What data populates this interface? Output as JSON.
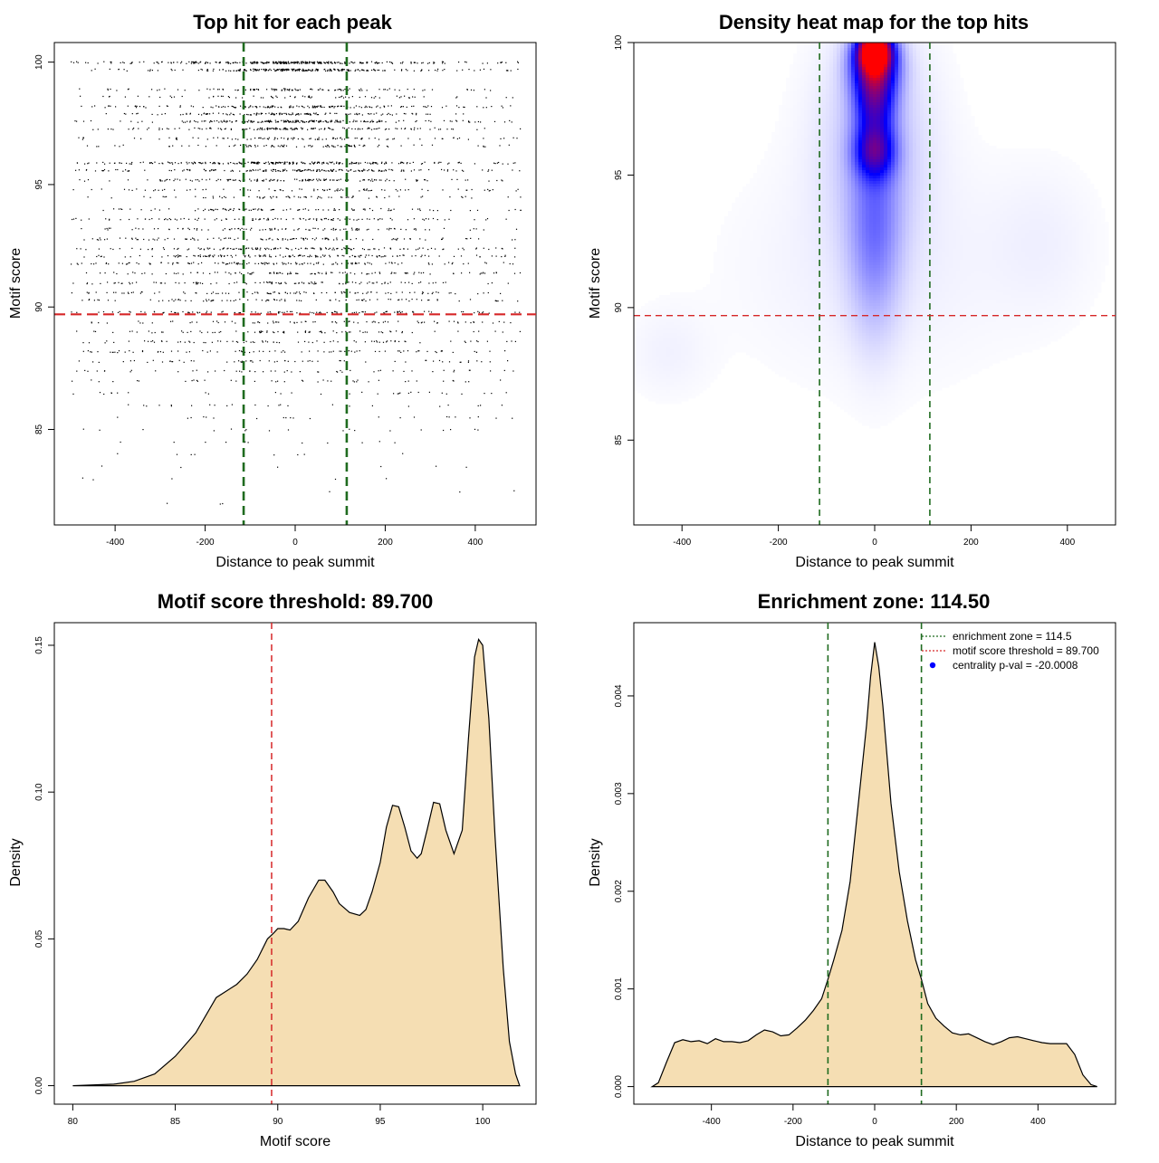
{
  "colors": {
    "green": "#1f6b1f",
    "red": "#d62728",
    "blue": "#0000ff",
    "fill": "#f5deb3",
    "black": "#000000"
  },
  "chart_data": [
    {
      "id": "p1",
      "type": "scatter",
      "title": "Top hit for each peak",
      "xlabel": "Distance to peak summit",
      "ylabel": "Motif score",
      "xlim": [
        -535,
        535
      ],
      "ylim": [
        81.1,
        100.8
      ],
      "xticks": [
        -400,
        -200,
        0,
        200,
        400
      ],
      "yticks": [
        85,
        90,
        95,
        100
      ],
      "vlines": [
        -114.5,
        114.5
      ],
      "hline": 89.7,
      "x_range": [
        -500,
        500
      ],
      "score_levels": [
        {
          "score": 100.0,
          "count": 320,
          "sd": 110
        },
        {
          "score": 99.7,
          "count": 250,
          "sd": 100
        },
        {
          "score": 98.9,
          "count": 110,
          "sd": 140
        },
        {
          "score": 98.6,
          "count": 70,
          "sd": 160
        },
        {
          "score": 98.2,
          "count": 160,
          "sd": 130
        },
        {
          "score": 97.9,
          "count": 140,
          "sd": 130
        },
        {
          "score": 97.6,
          "count": 210,
          "sd": 120
        },
        {
          "score": 97.3,
          "count": 150,
          "sd": 140
        },
        {
          "score": 96.9,
          "count": 100,
          "sd": 170
        },
        {
          "score": 96.6,
          "count": 90,
          "sd": 180
        },
        {
          "score": 95.9,
          "count": 260,
          "sd": 120
        },
        {
          "score": 95.6,
          "count": 180,
          "sd": 130
        },
        {
          "score": 95.2,
          "count": 140,
          "sd": 160
        },
        {
          "score": 94.8,
          "count": 80,
          "sd": 200
        },
        {
          "score": 94.5,
          "count": 70,
          "sd": 200
        },
        {
          "score": 94.0,
          "count": 100,
          "sd": 180
        },
        {
          "score": 93.6,
          "count": 110,
          "sd": 180
        },
        {
          "score": 93.2,
          "count": 100,
          "sd": 190
        },
        {
          "score": 92.8,
          "count": 110,
          "sd": 200
        },
        {
          "score": 92.4,
          "count": 140,
          "sd": 200
        },
        {
          "score": 92.1,
          "count": 150,
          "sd": 200
        },
        {
          "score": 91.8,
          "count": 130,
          "sd": 210
        },
        {
          "score": 91.4,
          "count": 110,
          "sd": 220
        },
        {
          "score": 91.0,
          "count": 110,
          "sd": 220
        },
        {
          "score": 90.6,
          "count": 100,
          "sd": 230
        },
        {
          "score": 90.3,
          "count": 90,
          "sd": 230
        },
        {
          "score": 89.8,
          "count": 110,
          "sd": 230
        },
        {
          "score": 89.4,
          "count": 80,
          "sd": 260
        },
        {
          "score": 89.0,
          "count": 80,
          "sd": 270
        },
        {
          "score": 88.6,
          "count": 80,
          "sd": 280
        },
        {
          "score": 88.2,
          "count": 80,
          "sd": 280
        },
        {
          "score": 87.8,
          "count": 60,
          "sd": 300
        },
        {
          "score": 87.4,
          "count": 50,
          "sd": 300
        },
        {
          "score": 87.0,
          "count": 40,
          "sd": 320
        },
        {
          "score": 86.5,
          "count": 30,
          "sd": 330
        },
        {
          "score": 86.0,
          "count": 25,
          "sd": 340
        },
        {
          "score": 85.5,
          "count": 22,
          "sd": 340
        },
        {
          "score": 85.0,
          "count": 18,
          "sd": 350
        },
        {
          "score": 84.5,
          "count": 12,
          "sd": 350
        },
        {
          "score": 84.0,
          "count": 8,
          "sd": 350
        },
        {
          "score": 83.5,
          "count": 6,
          "sd": 350
        },
        {
          "score": 83.0,
          "count": 5,
          "sd": 350
        },
        {
          "score": 82.5,
          "count": 3,
          "sd": 350
        },
        {
          "score": 82.0,
          "count": 3,
          "sd": 350
        }
      ]
    },
    {
      "id": "p2",
      "type": "heatmap",
      "title": "Density heat map for the top hits",
      "xlabel": "Distance to peak summit",
      "ylabel": "Motif score",
      "xlim": [
        -500,
        500
      ],
      "ylim": [
        81.8,
        100
      ],
      "xticks": [
        -400,
        -200,
        0,
        200,
        400
      ],
      "yticks": [
        85,
        90,
        95,
        100
      ],
      "vlines": [
        -114.5,
        114.5
      ],
      "hline": 89.7,
      "color_scale": [
        "white",
        "blue",
        "red"
      ],
      "hotspots": [
        {
          "x": 0,
          "y": 99.7,
          "sx": 22,
          "sy": 0.5,
          "w": 2.3
        },
        {
          "x": 0,
          "y": 99.2,
          "sx": 32,
          "sy": 0.8,
          "w": 1.35
        },
        {
          "x": 0,
          "y": 97.8,
          "sx": 28,
          "sy": 0.9,
          "w": 0.95
        },
        {
          "x": 0,
          "y": 95.9,
          "sx": 28,
          "sy": 0.7,
          "w": 1.0
        },
        {
          "x": 0,
          "y": 93.0,
          "sx": 38,
          "sy": 2.6,
          "w": 0.45
        },
        {
          "x": 0,
          "y": 96.5,
          "sx": 80,
          "sy": 2.8,
          "w": 0.22
        },
        {
          "x": 0,
          "y": 91.5,
          "sx": 200,
          "sy": 3.0,
          "w": 0.06
        },
        {
          "x": -430,
          "y": 88.3,
          "sx": 60,
          "sy": 1.2,
          "w": 0.05
        },
        {
          "x": 350,
          "y": 92.5,
          "sx": 80,
          "sy": 2.0,
          "w": 0.05
        }
      ]
    },
    {
      "id": "p3",
      "type": "area",
      "title": "Motif score threshold: 89.700",
      "xlabel": "Motif score",
      "ylabel": "Density",
      "xlim": [
        79.1,
        102.6
      ],
      "ylim": [
        -0.0063,
        0.1577
      ],
      "xticks": [
        80,
        85,
        90,
        95,
        100
      ],
      "yticks": [
        0.0,
        0.05,
        0.1,
        0.15
      ],
      "ytick_labels": [
        "0.00",
        "0.05",
        "0.10",
        "0.15"
      ],
      "vline": 89.7,
      "x": [
        80.0,
        82.0,
        83.0,
        84.0,
        85.0,
        86.0,
        87.0,
        88.0,
        88.5,
        89.0,
        89.5,
        89.8,
        90.0,
        90.3,
        90.6,
        91.0,
        91.5,
        92.0,
        92.3,
        92.7,
        93.0,
        93.5,
        94.0,
        94.3,
        94.6,
        95.0,
        95.3,
        95.6,
        95.9,
        96.2,
        96.5,
        96.8,
        97.0,
        97.3,
        97.6,
        97.9,
        98.2,
        98.6,
        99.0,
        99.3,
        99.6,
        99.8,
        100.0,
        100.3,
        100.6,
        101.0,
        101.3,
        101.6,
        101.8
      ],
      "y": [
        0.0,
        0.0005,
        0.0015,
        0.004,
        0.01,
        0.018,
        0.03,
        0.0345,
        0.038,
        0.043,
        0.05,
        0.052,
        0.0535,
        0.0535,
        0.053,
        0.056,
        0.064,
        0.07,
        0.07,
        0.066,
        0.062,
        0.059,
        0.058,
        0.06,
        0.066,
        0.076,
        0.088,
        0.0955,
        0.095,
        0.088,
        0.08,
        0.0775,
        0.079,
        0.0875,
        0.0965,
        0.096,
        0.087,
        0.079,
        0.087,
        0.118,
        0.146,
        0.152,
        0.15,
        0.125,
        0.085,
        0.04,
        0.015,
        0.004,
        0.0
      ]
    },
    {
      "id": "p4",
      "type": "area",
      "title": "Enrichment zone: 114.50",
      "xlabel": "Distance to peak summit",
      "ylabel": "Density",
      "xlim": [
        -590,
        590
      ],
      "ylim": [
        -0.00018,
        0.00475
      ],
      "xticks": [
        -400,
        -200,
        0,
        200,
        400
      ],
      "yticks": [
        0.0,
        0.001,
        0.002,
        0.003,
        0.004
      ],
      "ytick_labels": [
        "0.000",
        "0.001",
        "0.002",
        "0.003",
        "0.004"
      ],
      "vlines": [
        -114.5,
        114.5
      ],
      "x": [
        -545,
        -530,
        -510,
        -490,
        -470,
        -450,
        -430,
        -410,
        -390,
        -370,
        -350,
        -330,
        -310,
        -290,
        -270,
        -250,
        -230,
        -210,
        -190,
        -170,
        -150,
        -130,
        -114.5,
        -100,
        -80,
        -60,
        -40,
        -20,
        -10,
        0,
        10,
        20,
        40,
        60,
        80,
        100,
        114.5,
        130,
        150,
        170,
        190,
        210,
        230,
        250,
        270,
        290,
        310,
        330,
        350,
        370,
        390,
        410,
        430,
        450,
        470,
        490,
        510,
        530,
        545
      ],
      "y": [
        0.0,
        4e-05,
        0.00025,
        0.00045,
        0.00048,
        0.00046,
        0.00047,
        0.00044,
        0.00049,
        0.00046,
        0.00046,
        0.00045,
        0.00047,
        0.00053,
        0.00058,
        0.00056,
        0.00052,
        0.00053,
        0.0006,
        0.00068,
        0.00078,
        0.0009,
        0.0011,
        0.0013,
        0.0016,
        0.0021,
        0.0029,
        0.0037,
        0.0042,
        0.00455,
        0.0043,
        0.0039,
        0.0029,
        0.0022,
        0.0017,
        0.0013,
        0.0011,
        0.00085,
        0.0007,
        0.00062,
        0.00055,
        0.00053,
        0.00054,
        0.0005,
        0.00046,
        0.00043,
        0.00046,
        0.0005,
        0.00051,
        0.00049,
        0.00047,
        0.00045,
        0.00044,
        0.00044,
        0.00044,
        0.00033,
        0.00012,
        2e-05,
        0.0
      ]
    }
  ],
  "legend": {
    "items": [
      {
        "label": "enrichment zone = 114.5",
        "kind": "line",
        "color": "#1f6b1f"
      },
      {
        "label": "motif score threshold = 89.700",
        "kind": "line",
        "color": "#d62728"
      },
      {
        "label": "centrality p-val = -20.0008",
        "kind": "dot",
        "color": "#0000ff"
      }
    ]
  }
}
